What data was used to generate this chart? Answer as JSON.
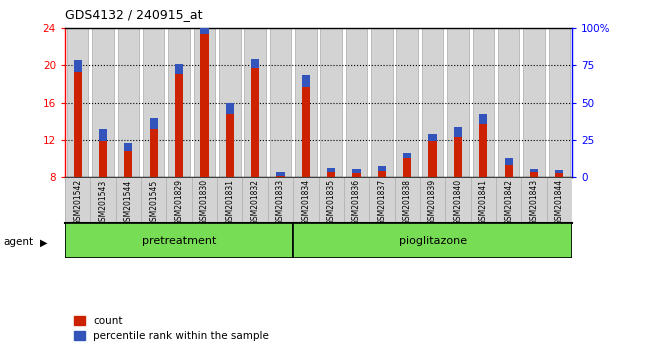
{
  "title": "GDS4132 / 240915_at",
  "samples": [
    "GSM201542",
    "GSM201543",
    "GSM201544",
    "GSM201545",
    "GSM201829",
    "GSM201830",
    "GSM201831",
    "GSM201832",
    "GSM201833",
    "GSM201834",
    "GSM201835",
    "GSM201836",
    "GSM201837",
    "GSM201838",
    "GSM201839",
    "GSM201840",
    "GSM201841",
    "GSM201842",
    "GSM201843",
    "GSM201844"
  ],
  "count_values": [
    19.3,
    11.9,
    10.8,
    13.2,
    19.1,
    23.4,
    14.8,
    19.7,
    8.15,
    17.7,
    8.55,
    8.4,
    8.6,
    10.0,
    11.9,
    12.3,
    13.7,
    9.3,
    8.55,
    8.4
  ],
  "percentile_values": [
    1.3,
    1.3,
    0.9,
    1.1,
    1.1,
    1.3,
    1.2,
    1.0,
    0.4,
    1.3,
    0.45,
    0.45,
    0.55,
    0.6,
    0.7,
    1.1,
    1.1,
    0.7,
    0.35,
    0.35
  ],
  "ylim_left": [
    8,
    24
  ],
  "ylim_right": [
    0,
    100
  ],
  "yticks_left": [
    8,
    12,
    16,
    20,
    24
  ],
  "yticks_right": [
    0,
    25,
    50,
    75,
    100
  ],
  "yticklabels_right": [
    "0",
    "25",
    "50",
    "75",
    "100%"
  ],
  "count_color": "#cc2200",
  "percentile_color": "#3355bb",
  "grid_color": "black",
  "pretreatment_count": 9,
  "pioglitazone_count": 11,
  "pretreatment_label": "pretreatment",
  "pioglitazone_label": "pioglitazone",
  "agent_label": "agent",
  "legend_count": "count",
  "legend_percentile": "percentile rank within the sample",
  "bar_bg_color": "#d3d3d3",
  "bar_bg_edgecolor": "#aaaaaa",
  "agent_box_color": "#77dd55",
  "title_fontsize": 9
}
